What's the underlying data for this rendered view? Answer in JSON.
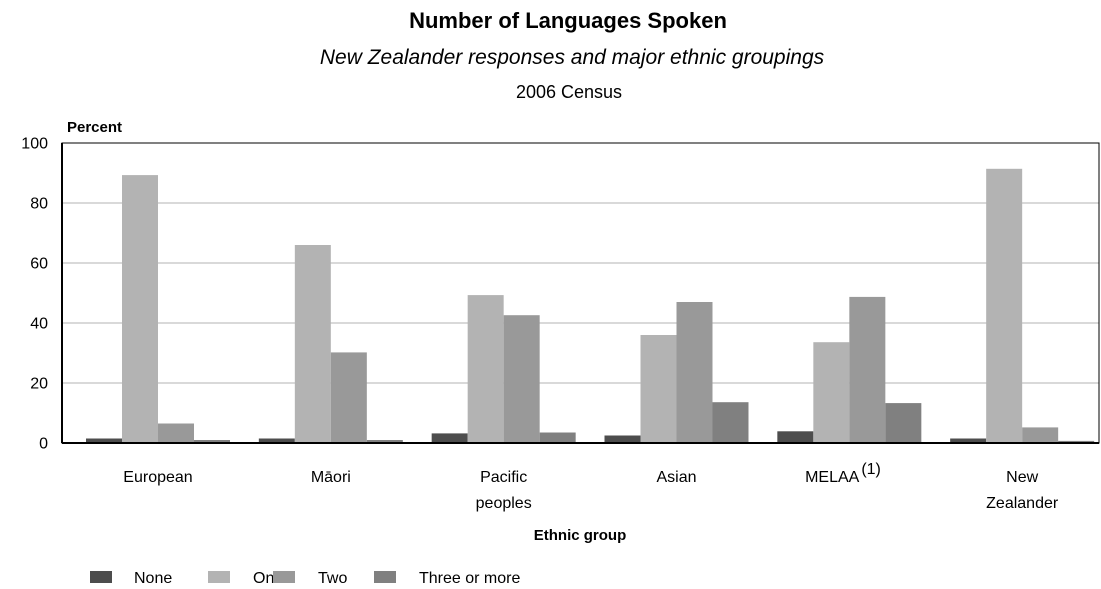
{
  "chart_data": {
    "type": "bar",
    "title": "Number of Languages Spoken",
    "subtitle": "New Zealander responses and major ethnic groupings",
    "subtitle2": "2006 Census",
    "ylabel": "Percent",
    "xlabel": "Ethnic group",
    "ylim": [
      0,
      100
    ],
    "yticks": [
      "0",
      "20",
      "40",
      "60",
      "80",
      "100"
    ],
    "grid": true,
    "legend_position": "bottom-left",
    "categories": [
      {
        "lines": [
          "European"
        ],
        "sup": ""
      },
      {
        "lines": [
          "Māori"
        ],
        "sup": ""
      },
      {
        "lines": [
          "Pacific",
          "peoples"
        ],
        "sup": ""
      },
      {
        "lines": [
          "Asian"
        ],
        "sup": ""
      },
      {
        "lines": [
          "MELAA"
        ],
        "sup": "(1)"
      },
      {
        "lines": [
          "New",
          "Zealander"
        ],
        "sup": ""
      }
    ],
    "series": [
      {
        "name": "None",
        "color": "#4d4d4d",
        "values": [
          1.5,
          1.5,
          3.2,
          2.5,
          3.9,
          1.5
        ]
      },
      {
        "name": "One",
        "color": "#b3b3b3",
        "values": [
          89.3,
          66.0,
          49.3,
          36.0,
          33.6,
          91.4
        ]
      },
      {
        "name": "Two",
        "color": "#999999",
        "values": [
          6.5,
          30.2,
          42.6,
          47.0,
          48.7,
          5.2
        ]
      },
      {
        "name": "Three or more",
        "color": "#808080",
        "values": [
          1.0,
          1.0,
          3.5,
          13.6,
          13.3,
          0.7
        ]
      }
    ]
  }
}
